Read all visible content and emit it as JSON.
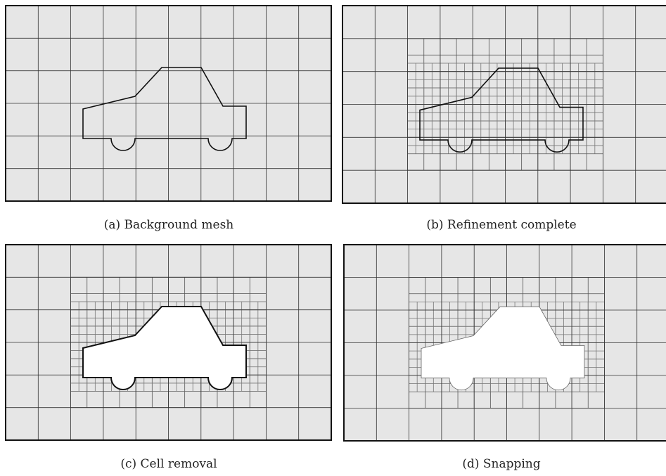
{
  "panels": [
    {
      "caption": "(a) Background mesh"
    },
    {
      "caption": "(b) Refinement complete"
    },
    {
      "caption": "(c) Cell removal"
    },
    {
      "caption": "(d) Snapping"
    }
  ]
}
